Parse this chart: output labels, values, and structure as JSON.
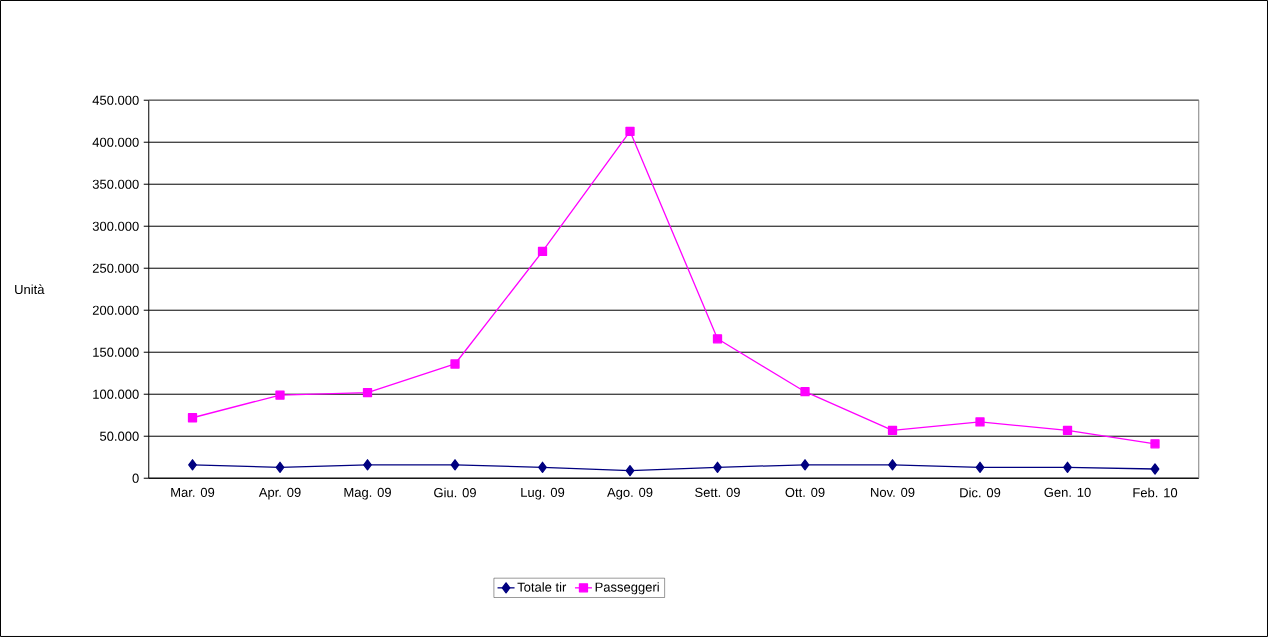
{
  "chart_data": {
    "type": "line",
    "ylabel": "Unità",
    "categories": [
      "Mar. 09",
      "Apr. 09",
      "Mag. 09",
      "Giu. 09",
      "Lug. 09",
      "Ago. 09",
      "Sett. 09",
      "Ott. 09",
      "Nov. 09",
      "Dic. 09",
      "Gen. 10",
      "Feb. 10"
    ],
    "series": [
      {
        "name": "Totale tir",
        "color": "#000080",
        "marker": "diamond",
        "values": [
          16000,
          13000,
          16000,
          16000,
          13000,
          9000,
          13000,
          16000,
          16000,
          13000,
          13000,
          11000
        ]
      },
      {
        "name": "Passeggeri",
        "color": "#ff00ff",
        "marker": "square",
        "values": [
          72000,
          99000,
          102000,
          136000,
          270000,
          413000,
          166000,
          103000,
          57000,
          67000,
          57000,
          41000
        ]
      }
    ],
    "ylim": [
      0,
      450000
    ],
    "yticks": [
      0,
      {
        "value": 50000,
        "label": "50.000"
      },
      {
        "value": 100000,
        "label": "100.000"
      },
      {
        "value": 150000,
        "label": "150.000"
      },
      {
        "value": 200000,
        "label": "200.000"
      },
      {
        "value": 250000,
        "label": "250.000"
      },
      {
        "value": 300000,
        "label": "300.000"
      },
      {
        "value": 350000,
        "label": "350.000"
      },
      {
        "value": 400000,
        "label": "400.000"
      },
      {
        "value": 450000,
        "label": "450.000"
      }
    ],
    "grid": "y",
    "legend": "bottom",
    "line_style": "solid"
  }
}
